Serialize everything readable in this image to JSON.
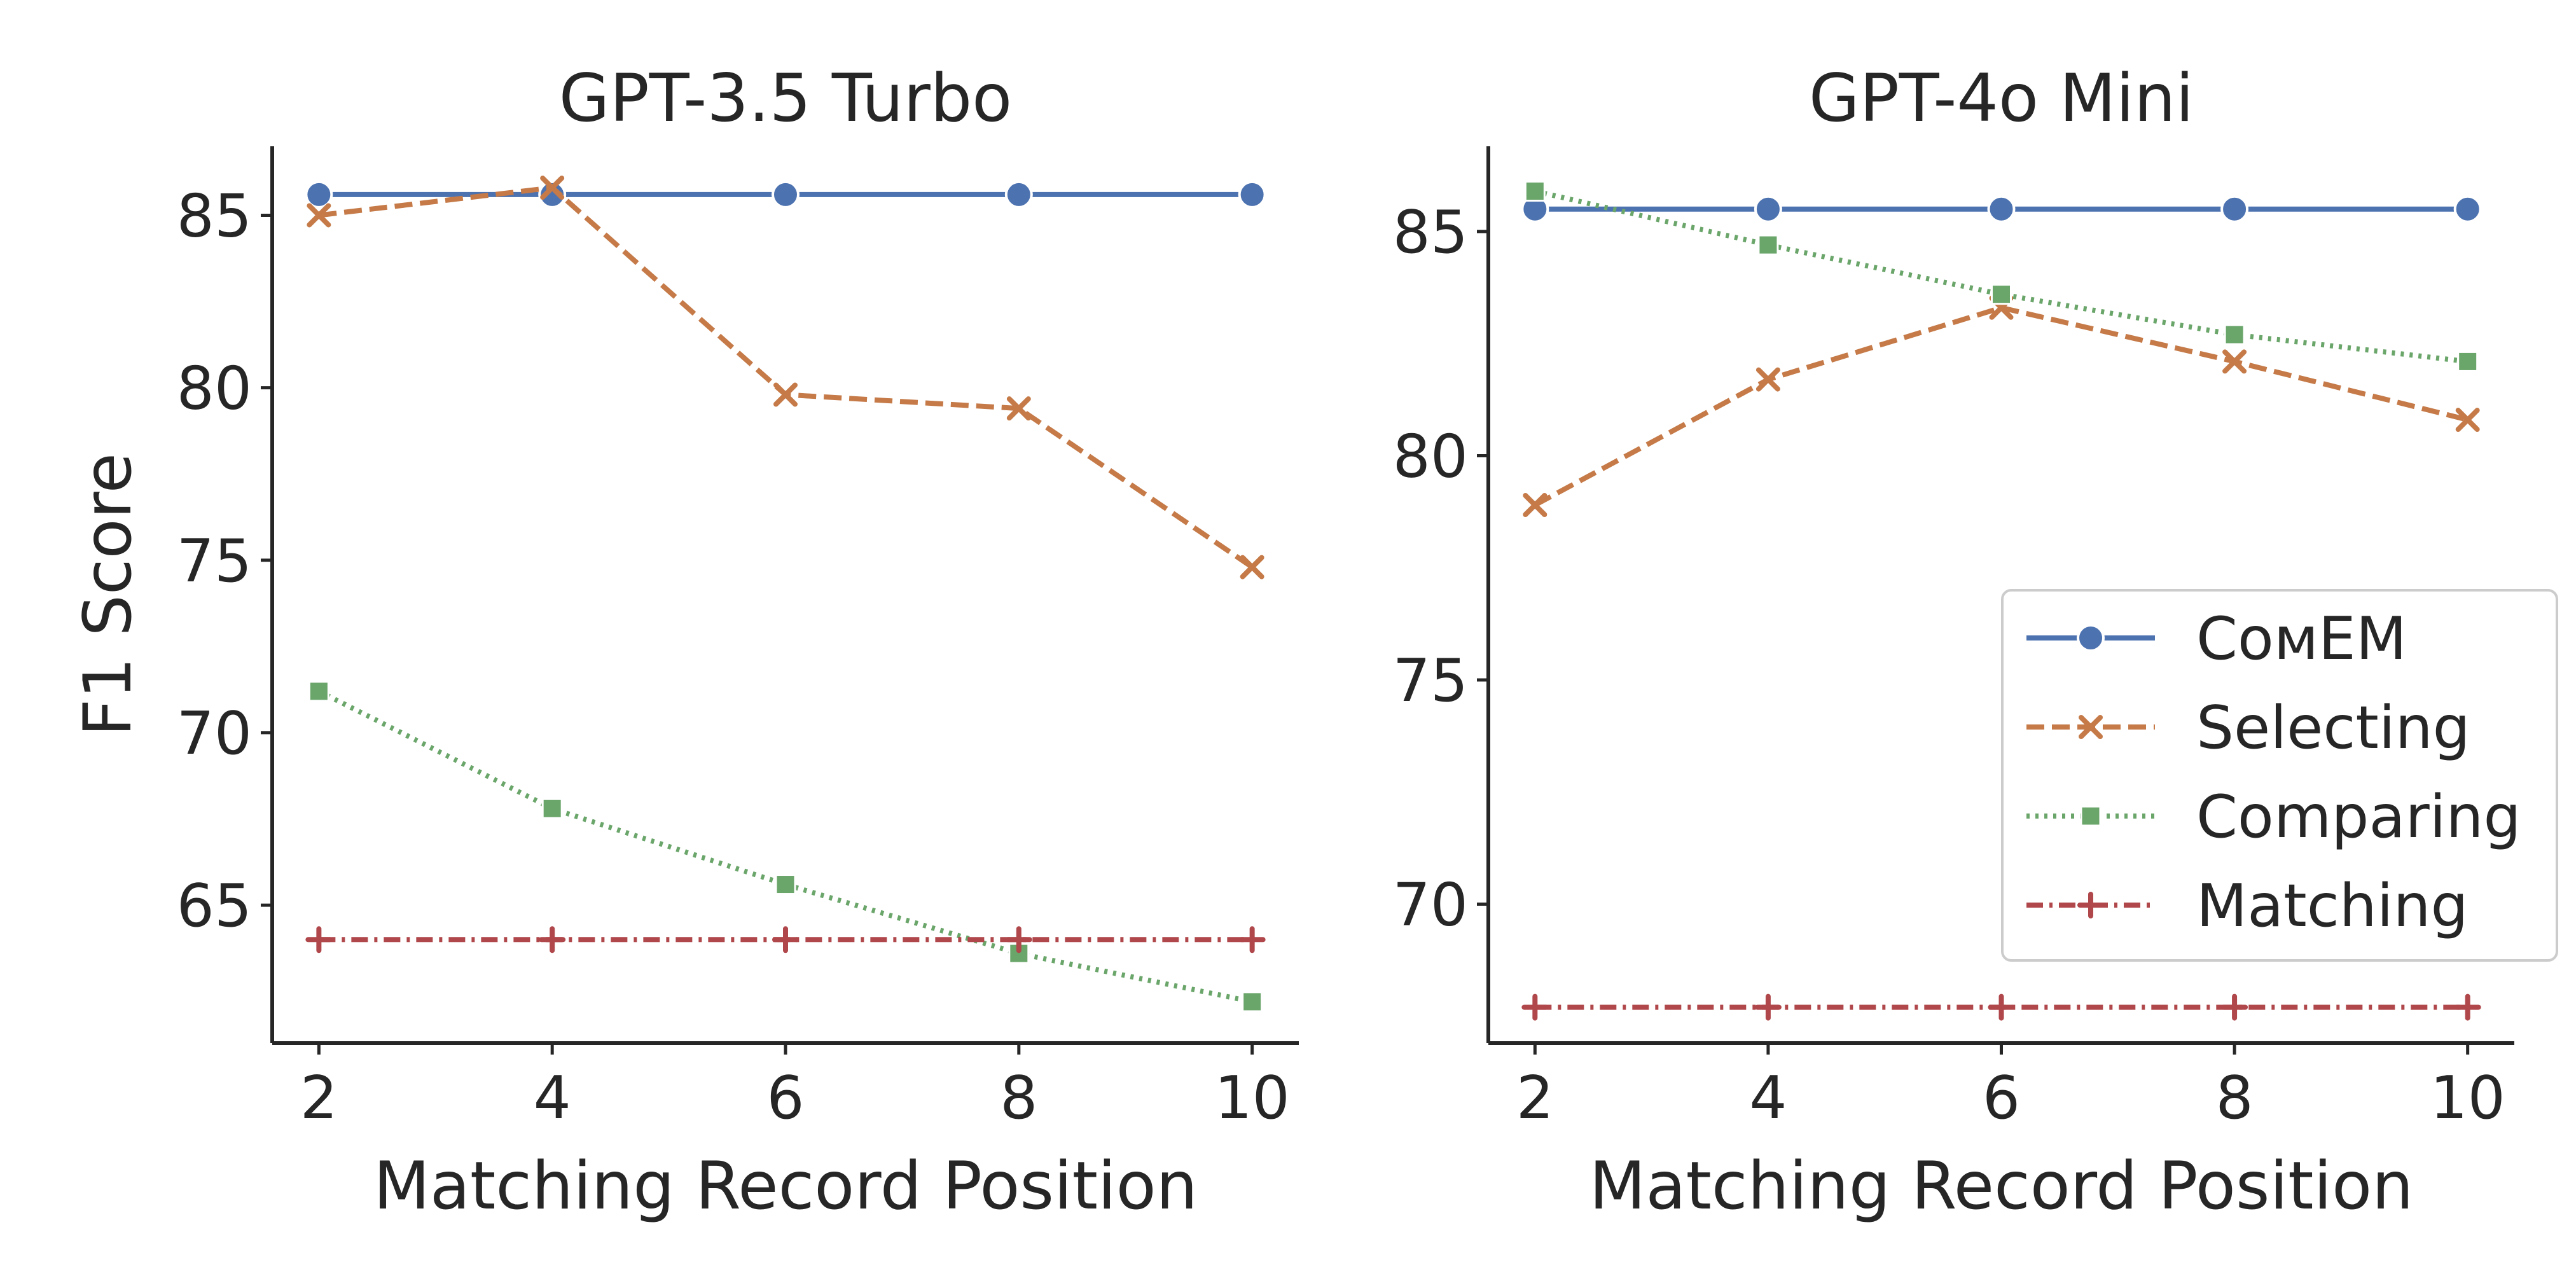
{
  "chart_data": [
    {
      "type": "line",
      "title": "GPT-3.5 Turbo",
      "xlabel": "Matching Record Position",
      "ylabel": "F1 Score",
      "x": [
        2,
        4,
        6,
        8,
        10
      ],
      "xticks": [
        "2",
        "4",
        "6",
        "8",
        "10"
      ],
      "yticks": [
        "65",
        "70",
        "75",
        "80",
        "85"
      ],
      "xlim": [
        1.6,
        10.4
      ],
      "ylim": [
        61.0,
        87.0
      ],
      "grid": false,
      "series": [
        {
          "name": "ComEM",
          "values": [
            85.6,
            85.6,
            85.6,
            85.6,
            85.6
          ]
        },
        {
          "name": "Selecting",
          "values": [
            85.0,
            85.8,
            79.8,
            79.4,
            74.8
          ]
        },
        {
          "name": "Comparing",
          "values": [
            71.2,
            67.8,
            65.6,
            63.6,
            62.2
          ]
        },
        {
          "name": "Matching",
          "values": [
            64.0,
            64.0,
            64.0,
            64.0,
            64.0
          ]
        }
      ]
    },
    {
      "type": "line",
      "title": "GPT-4o Mini",
      "xlabel": "Matching Record Position",
      "ylabel": "",
      "x": [
        2,
        4,
        6,
        8,
        10
      ],
      "xticks": [
        "2",
        "4",
        "6",
        "8",
        "10"
      ],
      "yticks": [
        "70",
        "75",
        "80",
        "85"
      ],
      "xlim": [
        1.6,
        10.4
      ],
      "ylim": [
        66.9,
        86.9
      ],
      "grid": false,
      "legend": "lower-right",
      "series": [
        {
          "name": "ComEM",
          "values": [
            85.5,
            85.5,
            85.5,
            85.5,
            85.5
          ]
        },
        {
          "name": "Selecting",
          "values": [
            78.9,
            81.7,
            83.3,
            82.1,
            80.8
          ]
        },
        {
          "name": "Comparing",
          "values": [
            85.9,
            84.7,
            83.6,
            82.7,
            82.1
          ]
        },
        {
          "name": "Matching",
          "values": [
            67.7,
            67.7,
            67.7,
            67.7,
            67.7
          ]
        }
      ]
    }
  ],
  "legend": {
    "items": [
      {
        "label": "СомЕМ",
        "color": "#4c72b0",
        "marker": "circle",
        "dash": "solid"
      },
      {
        "label": "Selecting",
        "color": "#c57a48",
        "marker": "x",
        "dash": "dashed"
      },
      {
        "label": "Comparing",
        "color": "#6aa56a",
        "marker": "square",
        "dash": "dotted"
      },
      {
        "label": "Matching",
        "color": "#b0474b",
        "marker": "plus",
        "dash": "dashdot"
      }
    ]
  },
  "colors": {
    "comem": "#4c72b0",
    "selecting": "#c57a48",
    "comparing": "#6aa56a",
    "matching": "#b0474b",
    "axis": "#262626"
  }
}
